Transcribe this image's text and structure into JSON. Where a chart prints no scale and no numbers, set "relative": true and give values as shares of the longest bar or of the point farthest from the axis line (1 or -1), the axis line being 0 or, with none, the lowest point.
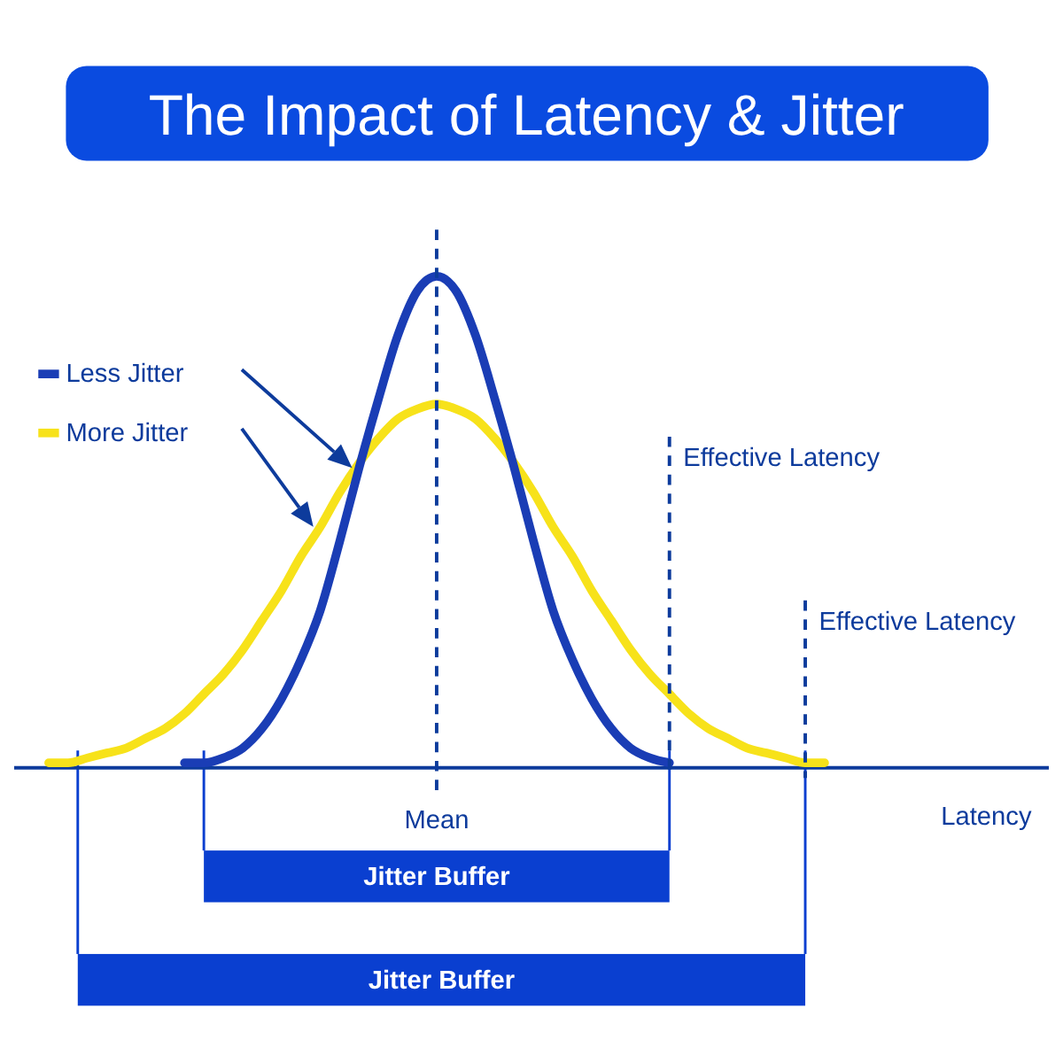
{
  "chart_data": {
    "type": "line",
    "title": "The Impact of Latency & Jitter",
    "xlabel": "Latency",
    "relative": true,
    "categories": [
      null,
      null,
      null,
      null,
      null,
      null,
      null,
      null,
      null,
      null,
      null,
      null,
      null,
      null,
      null,
      null,
      null,
      null,
      null,
      null,
      null,
      null,
      null,
      null,
      null,
      null,
      null,
      null,
      null,
      null,
      null,
      null,
      null,
      null,
      null,
      null,
      null,
      null,
      null,
      null,
      null
    ],
    "series": [
      {
        "name": "More Jitter",
        "color": "#f7e21a",
        "values": [
          0.01,
          0.01,
          0.02,
          0.03,
          0.04,
          0.06,
          0.08,
          0.11,
          0.15,
          0.19,
          0.24,
          0.3,
          0.36,
          0.43,
          0.49,
          0.56,
          0.62,
          0.67,
          0.71,
          0.73,
          0.74,
          0.73,
          0.71,
          0.67,
          0.62,
          0.56,
          0.49,
          0.43,
          0.36,
          0.3,
          0.24,
          0.19,
          0.15,
          0.11,
          0.08,
          0.06,
          0.04,
          0.03,
          0.02,
          0.01,
          0.01
        ]
      },
      {
        "name": "Less Jitter",
        "color": "#1a3db5",
        "values": [
          null,
          null,
          null,
          null,
          null,
          null,
          null,
          0.01,
          0.01,
          0.02,
          0.04,
          0.08,
          0.14,
          0.22,
          0.32,
          0.46,
          0.61,
          0.75,
          0.88,
          0.97,
          1,
          0.97,
          0.88,
          0.75,
          0.61,
          0.46,
          0.32,
          0.22,
          0.14,
          0.08,
          0.04,
          0.02,
          0.01,
          null,
          null,
          null,
          null,
          null,
          null,
          null,
          null
        ]
      }
    ],
    "annotations": [
      "Mean",
      "Effective Latency",
      "Effective Latency",
      "Jitter Buffer",
      "Jitter Buffer"
    ],
    "line_style": "solid",
    "marker": "none",
    "grid": false,
    "legend": "left"
  }
}
